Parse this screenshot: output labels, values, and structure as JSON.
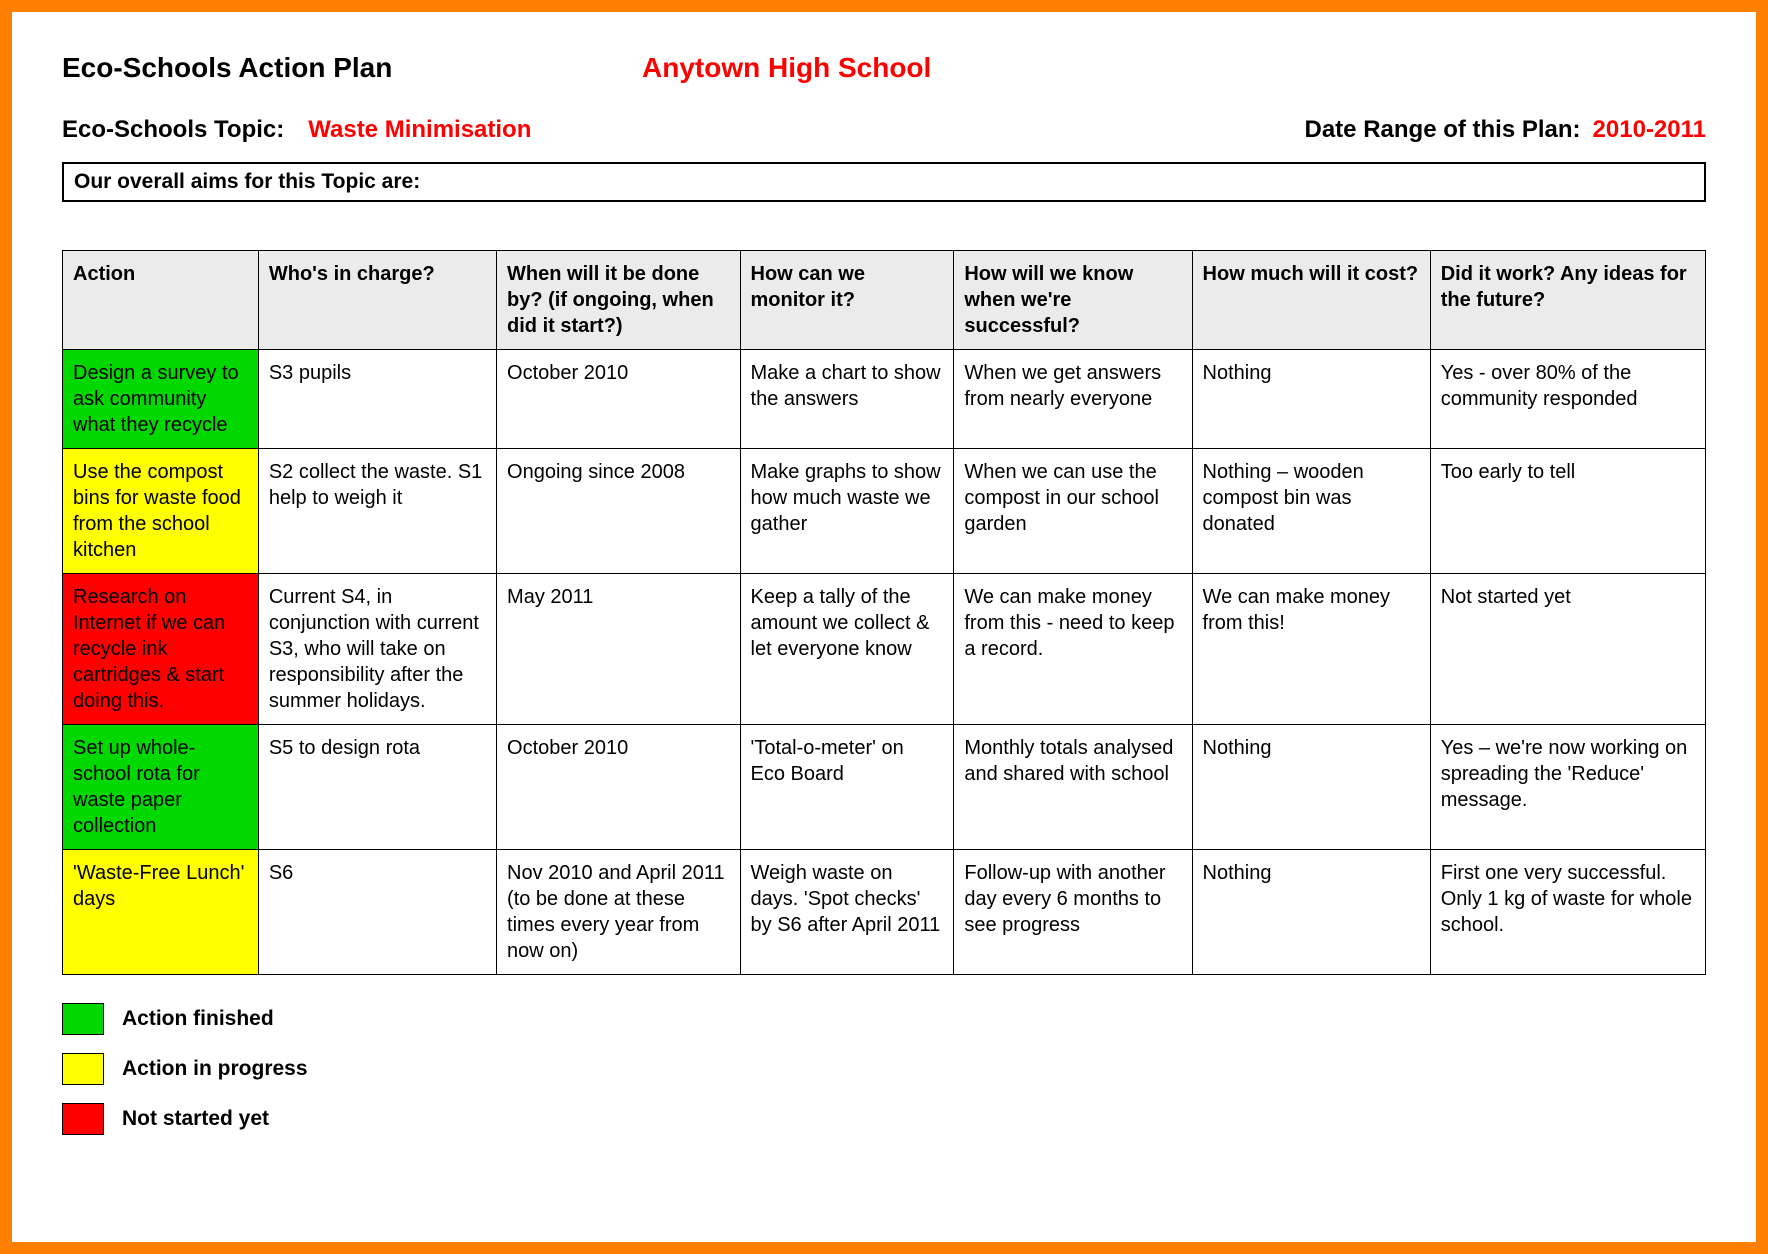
{
  "header": {
    "title": "Eco-Schools Action Plan",
    "school": "Anytown High School",
    "topic_label": "Eco-Schools Topic:",
    "topic_value": "Waste Minimisation",
    "date_label": "Date Range of this Plan:",
    "date_value": "2010-2011"
  },
  "aims_label": "Our overall aims for this Topic are:",
  "colors": {
    "frame_border": "#ff7f00",
    "accent_red": "#ff0000",
    "header_bg": "#ebebeb",
    "status_finished": "#00d800",
    "status_progress": "#ffff00",
    "status_notstarted": "#ff0000"
  },
  "table": {
    "columns": [
      "Action",
      "Who's in charge?",
      "When will it be done by? (if ongoing, when did it start?)",
      "How can we monitor it?",
      "How will we know when we're successful?",
      "How much will it cost?",
      "Did it work?\nAny ideas for the future?"
    ],
    "rows": [
      {
        "status_color": "#00d800",
        "action": "Design a survey to ask community what they recycle",
        "who": "S3 pupils",
        "when": "October 2010",
        "monitor": "Make a chart to show the answers",
        "success": "When we get answers from nearly everyone",
        "cost": "Nothing",
        "work": "Yes - over 80% of the community responded"
      },
      {
        "status_color": "#ffff00",
        "action": "Use the compost bins for waste food from the school kitchen",
        "who": "S2 collect the waste. S1 help to weigh it",
        "when": "Ongoing since 2008",
        "monitor": "Make graphs to show how much waste we gather",
        "success": "When we can use the compost in our school garden",
        "cost": "Nothing – wooden compost bin was donated",
        "work": "Too early to tell"
      },
      {
        "status_color": "#ff0000",
        "action": "Research on Internet if we can recycle ink cartridges & start doing this.",
        "who": "Current S4, in conjunction with current S3, who will take on responsibility after the summer holidays.",
        "when": "May 2011",
        "monitor": "Keep a tally of the amount we collect & let everyone know",
        "success": "We can make money from this - need to keep a record.",
        "cost": "We can make money from this!",
        "work": "Not started yet"
      },
      {
        "status_color": "#00d800",
        "action": "Set up whole-school rota for waste paper collection",
        "who": "S5 to design rota",
        "when": "October 2010",
        "monitor": "'Total-o-meter' on Eco Board",
        "success": "Monthly totals analysed and shared with school",
        "cost": "Nothing",
        "work": "Yes – we're now working on spreading the 'Reduce' message."
      },
      {
        "status_color": "#ffff00",
        "action": "'Waste-Free Lunch' days",
        "who": "S6",
        "when": "Nov 2010 and April 2011 (to be done at these times every year from now on)",
        "monitor": "Weigh waste on days. 'Spot checks' by S6 after April 2011",
        "success": "Follow-up with another day every 6 months to see progress",
        "cost": "Nothing",
        "work": "First one very successful. Only 1 kg of waste for whole school."
      }
    ]
  },
  "legend": [
    {
      "color": "#00d800",
      "label": "Action finished"
    },
    {
      "color": "#ffff00",
      "label": "Action in progress"
    },
    {
      "color": "#ff0000",
      "label": "Not started yet"
    }
  ]
}
